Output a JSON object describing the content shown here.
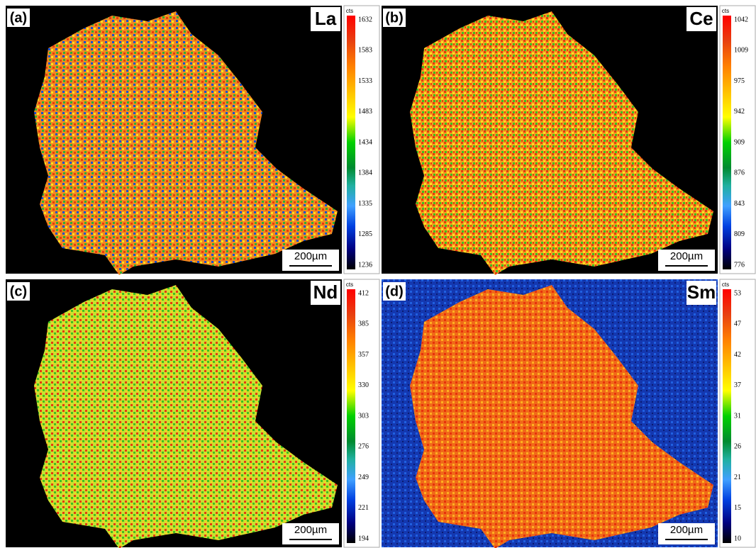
{
  "panels": [
    {
      "label": "(a)",
      "element": "La",
      "unit": "cts",
      "scale_ticks": [
        "1632",
        "1583",
        "1533",
        "1483",
        "1434",
        "1384",
        "1335",
        "1285",
        "1236"
      ],
      "scale_bar": "200µm"
    },
    {
      "label": "(b)",
      "element": "Ce",
      "unit": "cts",
      "scale_ticks": [
        "1042",
        "1009",
        "975",
        "942",
        "909",
        "876",
        "843",
        "809",
        "776"
      ],
      "scale_bar": "200µm"
    },
    {
      "label": "(c)",
      "element": "Nd",
      "unit": "cts",
      "scale_ticks": [
        "412",
        "385",
        "357",
        "330",
        "303",
        "276",
        "249",
        "221",
        "194"
      ],
      "scale_bar": "200µm"
    },
    {
      "label": "(d)",
      "element": "Sm",
      "unit": "cts",
      "scale_ticks": [
        "53",
        "47",
        "42",
        "37",
        "31",
        "26",
        "21",
        "15",
        "10"
      ],
      "scale_bar": "200µm"
    }
  ]
}
